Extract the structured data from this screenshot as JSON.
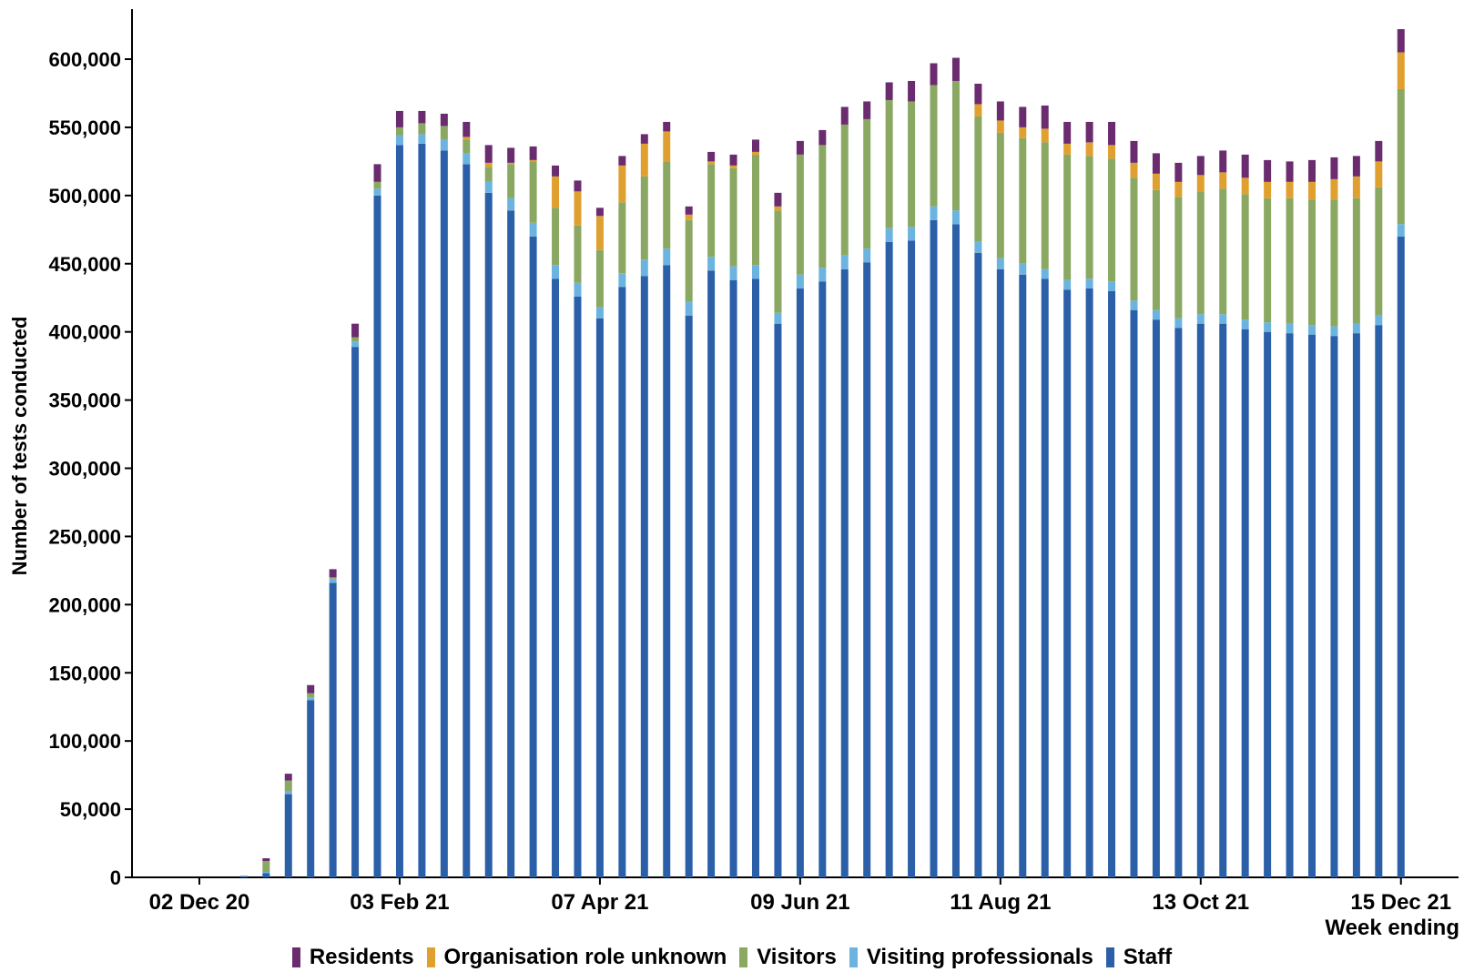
{
  "chart_data": {
    "type": "bar",
    "stacked": true,
    "xlabel": "Week ending",
    "ylabel": "Number of tests conducted",
    "ylim": [
      0,
      640000
    ],
    "yticks": [
      0,
      50000,
      100000,
      150000,
      200000,
      250000,
      300000,
      350000,
      400000,
      450000,
      500000,
      550000,
      600000
    ],
    "ytick_labels": [
      "0",
      "50,000",
      "100,000",
      "150,000",
      "200,000",
      "250,000",
      "300,000",
      "350,000",
      "400,000",
      "450,000",
      "500,000",
      "550,000",
      "600,000"
    ],
    "x_tick_labels": [
      {
        "index": 0,
        "label": "02 Dec 20"
      },
      {
        "index": 9,
        "label": "03 Feb 21"
      },
      {
        "index": 18,
        "label": "07 Apr 21"
      },
      {
        "index": 27,
        "label": "09 Jun 21"
      },
      {
        "index": 36,
        "label": "11 Aug 21"
      },
      {
        "index": 45,
        "label": "13 Oct 21"
      },
      {
        "index": 54,
        "label": "15 Dec 21"
      }
    ],
    "grid": false,
    "legend_position": "bottom",
    "colors": {
      "Residents": "#6b2c6f",
      "Organisation role unknown": "#e0a030",
      "Visitors": "#8aa862",
      "Visiting professionals": "#6cb4e0",
      "Staff": "#2b5fa8"
    },
    "categories": [
      "02 Dec 20",
      "09 Dec 20",
      "16 Dec 20",
      "23 Dec 20",
      "30 Dec 20",
      "06 Jan 21",
      "13 Jan 21",
      "20 Jan 21",
      "27 Jan 21",
      "03 Feb 21",
      "10 Feb 21",
      "17 Feb 21",
      "24 Feb 21",
      "03 Mar 21",
      "10 Mar 21",
      "17 Mar 21",
      "24 Mar 21",
      "31 Mar 21",
      "07 Apr 21",
      "14 Apr 21",
      "21 Apr 21",
      "28 Apr 21",
      "05 May 21",
      "12 May 21",
      "19 May 21",
      "26 May 21",
      "02 Jun 21",
      "09 Jun 21",
      "16 Jun 21",
      "23 Jun 21",
      "30 Jun 21",
      "07 Jul 21",
      "14 Jul 21",
      "21 Jul 21",
      "28 Jul 21",
      "04 Aug 21",
      "11 Aug 21",
      "18 Aug 21",
      "25 Aug 21",
      "01 Sep 21",
      "08 Sep 21",
      "15 Sep 21",
      "22 Sep 21",
      "29 Sep 21",
      "06 Oct 21",
      "13 Oct 21",
      "20 Oct 21",
      "27 Oct 21",
      "03 Nov 21",
      "10 Nov 21",
      "17 Nov 21",
      "24 Nov 21",
      "01 Dec 21",
      "08 Dec 21",
      "15 Dec 21"
    ],
    "series": [
      {
        "name": "Staff",
        "values": [
          0,
          0,
          1000,
          3000,
          61000,
          130000,
          216000,
          389000,
          500000,
          537000,
          538000,
          533000,
          523000,
          502000,
          489000,
          470000,
          439000,
          426000,
          410000,
          433000,
          441000,
          449000,
          412000,
          445000,
          438000,
          439000,
          406000,
          432000,
          437000,
          446000,
          451000,
          466000,
          467000,
          482000,
          479000,
          458000,
          446000,
          442000,
          439000,
          431000,
          432000,
          430000,
          416000,
          409000,
          403000,
          406000,
          406000,
          402000,
          400000,
          399000,
          398000,
          397000,
          399000,
          405000,
          470000
        ]
      },
      {
        "name": "Visiting professionals",
        "values": [
          0,
          0,
          0,
          1000,
          2000,
          2000,
          3000,
          4000,
          5000,
          7000,
          7000,
          8000,
          8000,
          8000,
          9000,
          10000,
          10000,
          10000,
          8000,
          10000,
          12000,
          12000,
          10000,
          10000,
          10000,
          10000,
          8000,
          10000,
          10000,
          10000,
          10000,
          10000,
          10000,
          10000,
          10000,
          8000,
          8000,
          8000,
          7000,
          7000,
          7000,
          7000,
          7000,
          7000,
          7000,
          7000,
          7000,
          7000,
          7000,
          7000,
          7000,
          7000,
          7000,
          7000,
          9000
        ]
      },
      {
        "name": "Visitors",
        "values": [
          0,
          0,
          0,
          8000,
          8000,
          3000,
          1000,
          3000,
          5000,
          6000,
          8000,
          10000,
          10000,
          11000,
          25000,
          45000,
          42000,
          42000,
          42000,
          52000,
          61000,
          64000,
          60000,
          68000,
          72000,
          81000,
          75000,
          88000,
          90000,
          96000,
          95000,
          94000,
          92000,
          89000,
          95000,
          92000,
          92000,
          92000,
          93000,
          92000,
          90000,
          90000,
          90000,
          88000,
          89000,
          90000,
          92000,
          92000,
          91000,
          92000,
          92000,
          93000,
          92000,
          94000,
          99000
        ]
      },
      {
        "name": "Organisation role unknown",
        "values": [
          0,
          0,
          0,
          0,
          0,
          0,
          0,
          0,
          0,
          0,
          0,
          0,
          2000,
          3000,
          1000,
          1000,
          23000,
          25000,
          25000,
          27000,
          24000,
          22000,
          4000,
          2000,
          2000,
          2000,
          3000,
          0,
          0,
          0,
          0,
          0,
          0,
          0,
          0,
          9000,
          9000,
          8000,
          10000,
          8000,
          10000,
          10000,
          11000,
          12000,
          11000,
          12000,
          12000,
          12000,
          12000,
          12000,
          13000,
          15000,
          16000,
          19000,
          27000
        ]
      },
      {
        "name": "Residents",
        "values": [
          0,
          0,
          0,
          2000,
          5000,
          6000,
          6000,
          10000,
          13000,
          12000,
          9000,
          9000,
          11000,
          13000,
          11000,
          10000,
          8000,
          8000,
          6000,
          7000,
          7000,
          7000,
          6000,
          7000,
          8000,
          9000,
          10000,
          10000,
          11000,
          13000,
          13000,
          13000,
          15000,
          16000,
          17000,
          15000,
          14000,
          15000,
          17000,
          16000,
          15000,
          17000,
          16000,
          15000,
          14000,
          14000,
          16000,
          17000,
          16000,
          15000,
          16000,
          16000,
          15000,
          15000,
          17000
        ]
      }
    ],
    "legend_order": [
      "Residents",
      "Organisation role unknown",
      "Visitors",
      "Visiting professionals",
      "Staff"
    ]
  }
}
